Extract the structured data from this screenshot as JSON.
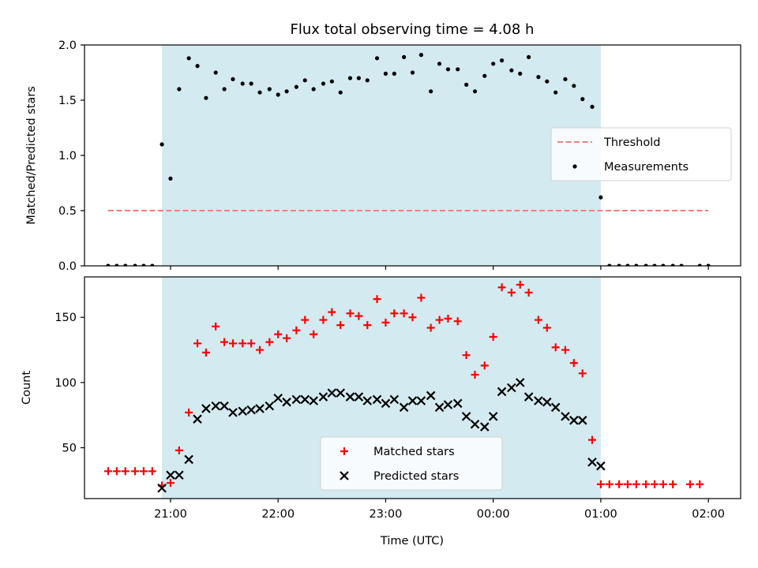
{
  "chart_data": [
    {
      "type": "scatter",
      "title": "Flux total observing time = 4.08 h",
      "xlabel": "",
      "ylabel": "Matched/Predicted stars",
      "ylim": [
        0,
        2.0
      ],
      "yticks": [
        "0.0",
        "0.5",
        "1.0",
        "1.5",
        "2.0"
      ],
      "xlim": [
        -0.8,
        5.3
      ],
      "xticks": [
        0,
        1,
        2,
        3,
        4,
        5
      ],
      "show_xtick_labels": false,
      "shaded_span": {
        "x_start": -0.08,
        "x_end": 4.0,
        "color": "#d3eaf0"
      },
      "threshold": {
        "name": "Threshold",
        "value": 0.5,
        "x_start": -0.58,
        "x_end": 5.0,
        "color": "#f08080"
      },
      "legend": {
        "position": "right",
        "entries": [
          "Threshold",
          "Measurements"
        ]
      },
      "series": [
        {
          "name": "Measurements",
          "marker": "dot",
          "color": "#000000",
          "x": [
            -0.58,
            -0.5,
            -0.42,
            -0.33,
            -0.25,
            -0.17,
            -0.08,
            0.0,
            0.08,
            0.17,
            0.25,
            0.33,
            0.42,
            0.5,
            0.58,
            0.67,
            0.75,
            0.83,
            0.92,
            1.0,
            1.08,
            1.17,
            1.25,
            1.33,
            1.42,
            1.5,
            1.58,
            1.67,
            1.75,
            1.83,
            1.92,
            2.0,
            2.08,
            2.17,
            2.25,
            2.33,
            2.42,
            2.5,
            2.58,
            2.67,
            2.75,
            2.83,
            2.92,
            3.0,
            3.08,
            3.17,
            3.25,
            3.33,
            3.42,
            3.5,
            3.58,
            3.67,
            3.75,
            3.83,
            3.92,
            4.0,
            4.08,
            4.17,
            4.25,
            4.33,
            4.42,
            4.5,
            4.58,
            4.67,
            4.75,
            4.83,
            4.92,
            5.0
          ],
          "y": [
            0.0,
            0.0,
            0.0,
            0.0,
            0.0,
            0.0,
            1.1,
            0.79,
            1.6,
            1.88,
            1.81,
            1.52,
            1.75,
            1.6,
            1.69,
            1.65,
            1.65,
            1.57,
            1.6,
            1.55,
            1.58,
            1.62,
            1.68,
            1.6,
            1.65,
            1.67,
            1.57,
            1.7,
            1.7,
            1.68,
            1.88,
            1.74,
            1.74,
            1.89,
            1.75,
            1.91,
            1.58,
            1.83,
            1.78,
            1.78,
            1.64,
            1.58,
            1.72,
            1.83,
            1.86,
            1.77,
            1.74,
            1.89,
            1.71,
            1.67,
            1.57,
            1.69,
            1.63,
            1.51,
            1.44,
            0.62,
            0.0,
            0.0,
            0.0,
            0.0,
            0.0,
            0.0,
            0.0,
            0.0,
            0.0,
            null,
            0.0,
            0.0
          ]
        }
      ]
    },
    {
      "type": "scatter",
      "title": "",
      "xlabel": "Time (UTC)",
      "ylabel": "Count",
      "ylim": [
        11,
        181
      ],
      "yticks": [
        "50",
        "100",
        "150"
      ],
      "ytick_values": [
        50,
        100,
        150
      ],
      "xlim": [
        -0.8,
        5.3
      ],
      "xticks": [
        0,
        1,
        2,
        3,
        4,
        5
      ],
      "xtick_labels": [
        "21:00",
        "22:00",
        "23:00",
        "00:00",
        "01:00",
        "02:00"
      ],
      "shaded_span": {
        "x_start": -0.08,
        "x_end": 4.0,
        "color": "#d3eaf0"
      },
      "legend": {
        "position": "lower center",
        "entries": [
          "Matched stars",
          "Predicted stars"
        ]
      },
      "series": [
        {
          "name": "Matched stars",
          "marker": "plus",
          "color": "#ff0000",
          "x": [
            -0.58,
            -0.5,
            -0.42,
            -0.33,
            -0.25,
            -0.17,
            -0.08,
            0.0,
            0.08,
            0.17,
            0.25,
            0.33,
            0.42,
            0.5,
            0.58,
            0.67,
            0.75,
            0.83,
            0.92,
            1.0,
            1.08,
            1.17,
            1.25,
            1.33,
            1.42,
            1.5,
            1.58,
            1.67,
            1.75,
            1.83,
            1.92,
            2.0,
            2.08,
            2.17,
            2.25,
            2.33,
            2.42,
            2.5,
            2.58,
            2.67,
            2.75,
            2.83,
            2.92,
            3.0,
            3.08,
            3.17,
            3.25,
            3.33,
            3.42,
            3.5,
            3.58,
            3.67,
            3.75,
            3.83,
            3.92,
            4.0,
            4.08,
            4.17,
            4.25,
            4.33,
            4.42,
            4.5,
            4.58,
            4.67,
            4.83,
            4.92
          ],
          "y": [
            32,
            32,
            32,
            32,
            32,
            32,
            21,
            23,
            48,
            77,
            130,
            123,
            143,
            131,
            130,
            130,
            130,
            125,
            131,
            137,
            134,
            140,
            148,
            137,
            148,
            154,
            144,
            153,
            151,
            144,
            164,
            146,
            153,
            153,
            150,
            165,
            142,
            148,
            149,
            147,
            121,
            106,
            113,
            135,
            173,
            169,
            175,
            169,
            148,
            142,
            127,
            125,
            115,
            107,
            56,
            22,
            22,
            22,
            22,
            22,
            22,
            22,
            22,
            22,
            22,
            22
          ]
        },
        {
          "name": "Predicted stars",
          "marker": "x",
          "color": "#000000",
          "x": [
            -0.08,
            0.0,
            0.08,
            0.17,
            0.25,
            0.33,
            0.42,
            0.5,
            0.58,
            0.67,
            0.75,
            0.83,
            0.92,
            1.0,
            1.08,
            1.17,
            1.25,
            1.33,
            1.42,
            1.5,
            1.58,
            1.67,
            1.75,
            1.83,
            1.92,
            2.0,
            2.08,
            2.17,
            2.25,
            2.33,
            2.42,
            2.5,
            2.58,
            2.67,
            2.75,
            2.83,
            2.92,
            3.0,
            3.08,
            3.17,
            3.25,
            3.33,
            3.42,
            3.5,
            3.58,
            3.67,
            3.75,
            3.83,
            3.92,
            4.0
          ],
          "y": [
            19,
            29,
            29,
            41,
            72,
            80,
            82,
            82,
            77,
            78,
            79,
            80,
            82,
            88,
            85,
            87,
            87,
            86,
            89,
            92,
            92,
            89,
            89,
            86,
            87,
            84,
            87,
            81,
            86,
            86,
            90,
            81,
            83,
            84,
            74,
            68,
            66,
            74,
            93,
            96,
            100,
            89,
            86,
            85,
            81,
            74,
            71,
            71,
            39,
            36
          ]
        }
      ]
    }
  ]
}
